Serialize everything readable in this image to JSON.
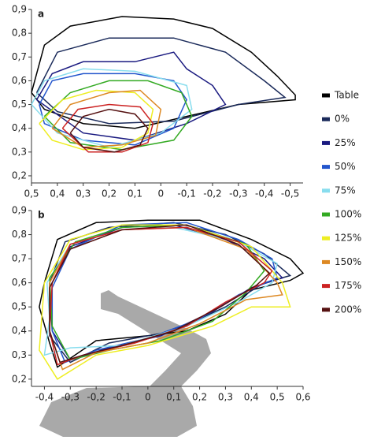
{
  "chart_data": [
    {
      "type": "line",
      "panel_label": "a",
      "xlim": [
        0.5,
        -0.55
      ],
      "ylim": [
        0.17,
        0.9
      ],
      "xticks": [
        {
          "value": 0.5,
          "label": "0,5"
        },
        {
          "value": 0.4,
          "label": "0,4"
        },
        {
          "value": 0.3,
          "label": "0,3"
        },
        {
          "value": 0.2,
          "label": "0,2"
        },
        {
          "value": 0.1,
          "label": "0,1"
        },
        0,
        {
          "value": -0.1,
          "label": "-0,1"
        },
        {
          "value": -0.2,
          "label": "-0,2"
        },
        {
          "value": -0.3,
          "label": "-0,3"
        },
        {
          "value": -0.4,
          "label": "-0,4"
        },
        {
          "value": -0.5,
          "label": "-0,5"
        }
      ],
      "yticks": [
        {
          "value": 0.2,
          "label": "0,2"
        },
        {
          "value": 0.3,
          "label": "0,3"
        },
        {
          "value": 0.4,
          "label": "0,4"
        },
        {
          "value": 0.5,
          "label": "0,5"
        },
        {
          "value": 0.6,
          "label": "0,6"
        },
        {
          "value": 0.7,
          "label": "0,7"
        },
        {
          "value": 0.8,
          "label": "0,8"
        },
        {
          "value": 0.9,
          "label": "0,9"
        }
      ],
      "series": [
        {
          "name": "Table",
          "color": "#000000",
          "x": [
            0.5,
            0.45,
            0.35,
            0.15,
            -0.05,
            -0.2,
            -0.35,
            -0.45,
            -0.52,
            -0.52,
            -0.3,
            -0.1,
            0.1,
            0.3,
            0.45,
            0.5
          ],
          "y": [
            0.55,
            0.75,
            0.83,
            0.87,
            0.86,
            0.82,
            0.72,
            0.62,
            0.54,
            0.52,
            0.5,
            0.45,
            0.4,
            0.42,
            0.48,
            0.55
          ]
        },
        {
          "name": "0%",
          "color": "#1a2a5a",
          "x": [
            0.48,
            0.4,
            0.2,
            -0.05,
            -0.25,
            -0.4,
            -0.48,
            -0.3,
            -0.05,
            0.2,
            0.4,
            0.48
          ],
          "y": [
            0.55,
            0.72,
            0.78,
            0.78,
            0.72,
            0.6,
            0.53,
            0.5,
            0.43,
            0.42,
            0.47,
            0.55
          ]
        },
        {
          "name": "25%",
          "color": "#1a1a80",
          "x": [
            0.48,
            0.42,
            0.3,
            0.1,
            -0.05,
            -0.1,
            -0.2,
            -0.25,
            -0.1,
            0.1,
            0.3,
            0.48
          ],
          "y": [
            0.52,
            0.63,
            0.68,
            0.68,
            0.72,
            0.65,
            0.58,
            0.5,
            0.42,
            0.35,
            0.38,
            0.52
          ]
        },
        {
          "name": "50%",
          "color": "#2255cc",
          "x": [
            0.47,
            0.42,
            0.3,
            0.1,
            -0.05,
            -0.1,
            -0.05,
            0.1,
            0.3,
            0.45,
            0.47
          ],
          "y": [
            0.5,
            0.6,
            0.63,
            0.63,
            0.6,
            0.52,
            0.4,
            0.33,
            0.35,
            0.42,
            0.5
          ]
        },
        {
          "name": "75%",
          "color": "#88ddee",
          "x": [
            0.5,
            0.45,
            0.3,
            0.1,
            -0.1,
            -0.12,
            0,
            0.2,
            0.4,
            0.5
          ],
          "y": [
            0.5,
            0.6,
            0.65,
            0.64,
            0.58,
            0.48,
            0.38,
            0.32,
            0.38,
            0.5
          ]
        },
        {
          "name": "100%",
          "color": "#33aa22",
          "x": [
            0.45,
            0.35,
            0.2,
            0.05,
            -0.08,
            -0.12,
            -0.05,
            0.15,
            0.35,
            0.45
          ],
          "y": [
            0.45,
            0.55,
            0.6,
            0.6,
            0.55,
            0.45,
            0.35,
            0.31,
            0.34,
            0.45
          ]
        },
        {
          "name": "125%",
          "color": "#eeee22",
          "x": [
            0.47,
            0.38,
            0.25,
            0.1,
            0.03,
            0.05,
            0.15,
            0.3,
            0.42,
            0.47
          ],
          "y": [
            0.42,
            0.52,
            0.56,
            0.55,
            0.48,
            0.38,
            0.32,
            0.31,
            0.35,
            0.42
          ]
        },
        {
          "name": "150%",
          "color": "#dd8822",
          "x": [
            0.42,
            0.35,
            0.2,
            0.08,
            0,
            0.02,
            0.15,
            0.3,
            0.42
          ],
          "y": [
            0.4,
            0.5,
            0.55,
            0.56,
            0.48,
            0.37,
            0.33,
            0.32,
            0.4
          ]
        },
        {
          "name": "175%",
          "color": "#cc2222",
          "x": [
            0.38,
            0.32,
            0.2,
            0.08,
            0.03,
            0.05,
            0.15,
            0.28,
            0.38
          ],
          "y": [
            0.4,
            0.48,
            0.5,
            0.49,
            0.42,
            0.34,
            0.3,
            0.3,
            0.4
          ]
        },
        {
          "name": "200%",
          "color": "#551111",
          "x": [
            0.35,
            0.3,
            0.2,
            0.1,
            0.05,
            0.08,
            0.18,
            0.3,
            0.35
          ],
          "y": [
            0.38,
            0.45,
            0.48,
            0.46,
            0.4,
            0.33,
            0.3,
            0.32,
            0.38
          ]
        }
      ]
    },
    {
      "type": "line",
      "panel_label": "b",
      "xlim": [
        -0.45,
        0.6
      ],
      "ylim": [
        0.17,
        0.9
      ],
      "xticks": [
        {
          "value": -0.4,
          "label": "-0,4"
        },
        {
          "value": -0.3,
          "label": "-0,3"
        },
        {
          "value": -0.2,
          "label": "-0,2"
        },
        {
          "value": -0.1,
          "label": "-0,1"
        },
        0,
        {
          "value": 0.1,
          "label": "0,1"
        },
        {
          "value": 0.2,
          "label": "0,2"
        },
        {
          "value": 0.3,
          "label": "0,3"
        },
        {
          "value": 0.4,
          "label": "0,4"
        },
        {
          "value": 0.5,
          "label": "0,5"
        },
        {
          "value": 0.6,
          "label": "0,6"
        }
      ],
      "yticks": [
        {
          "value": 0.2,
          "label": "0,2"
        },
        {
          "value": 0.3,
          "label": "0,3"
        },
        {
          "value": 0.4,
          "label": "0,4"
        },
        {
          "value": 0.5,
          "label": "0,5"
        },
        {
          "value": 0.6,
          "label": "0,6"
        },
        {
          "value": 0.7,
          "label": "0,7"
        },
        {
          "value": 0.8,
          "label": "0,8"
        },
        {
          "value": 0.9,
          "label": "0,9"
        }
      ],
      "series": [
        {
          "color": "#000000",
          "x": [
            -0.4,
            -0.35,
            -0.2,
            0,
            0.2,
            0.4,
            0.55,
            0.6,
            0.55,
            0.4,
            0.3,
            0.15,
            0,
            -0.2,
            -0.35,
            -0.38,
            -0.42,
            -0.4
          ],
          "y": [
            0.6,
            0.78,
            0.85,
            0.86,
            0.86,
            0.78,
            0.7,
            0.64,
            0.61,
            0.57,
            0.47,
            0.4,
            0.38,
            0.36,
            0.25,
            0.35,
            0.5,
            0.6
          ]
        },
        {
          "color": "#1a2a5a",
          "x": [
            -0.38,
            -0.32,
            -0.15,
            0.1,
            0.3,
            0.45,
            0.55,
            0.45,
            0.3,
            0.1,
            -0.15,
            -0.3,
            -0.38,
            -0.38
          ],
          "y": [
            0.6,
            0.77,
            0.83,
            0.85,
            0.8,
            0.72,
            0.63,
            0.6,
            0.5,
            0.4,
            0.35,
            0.27,
            0.38,
            0.6
          ]
        },
        {
          "color": "#1a1a80",
          "x": [
            -0.38,
            -0.3,
            -0.1,
            0.1,
            0.3,
            0.45,
            0.52,
            0.4,
            0.25,
            0.05,
            -0.15,
            -0.3,
            -0.37,
            -0.38
          ],
          "y": [
            0.58,
            0.75,
            0.83,
            0.84,
            0.78,
            0.7,
            0.62,
            0.58,
            0.48,
            0.38,
            0.33,
            0.28,
            0.4,
            0.58
          ]
        },
        {
          "color": "#2255cc",
          "x": [
            -0.37,
            -0.3,
            -0.1,
            0.15,
            0.35,
            0.48,
            0.5,
            0.35,
            0.2,
            0,
            -0.2,
            -0.32,
            -0.37,
            -0.37
          ],
          "y": [
            0.58,
            0.74,
            0.84,
            0.85,
            0.78,
            0.7,
            0.62,
            0.55,
            0.45,
            0.37,
            0.32,
            0.27,
            0.4,
            0.58
          ]
        },
        {
          "color": "#88ddee",
          "x": [
            -0.39,
            -0.3,
            -0.1,
            0.1,
            0.35,
            0.5,
            0.48,
            0.35,
            0.15,
            -0.1,
            -0.3,
            -0.4,
            -0.38,
            -0.39
          ],
          "y": [
            0.6,
            0.76,
            0.82,
            0.83,
            0.77,
            0.68,
            0.6,
            0.52,
            0.42,
            0.34,
            0.33,
            0.3,
            0.45,
            0.6
          ]
        },
        {
          "color": "#33aa22",
          "x": [
            -0.38,
            -0.28,
            -0.1,
            0.15,
            0.38,
            0.45,
            0.38,
            0.25,
            0.05,
            -0.15,
            -0.3,
            -0.37,
            -0.38
          ],
          "y": [
            0.62,
            0.77,
            0.83,
            0.84,
            0.76,
            0.65,
            0.56,
            0.44,
            0.36,
            0.32,
            0.28,
            0.42,
            0.62
          ]
        },
        {
          "color": "#eeee22",
          "x": [
            -0.4,
            -0.3,
            -0.1,
            0.15,
            0.4,
            0.52,
            0.55,
            0.4,
            0.25,
            0,
            -0.2,
            -0.35,
            -0.42,
            -0.4
          ],
          "y": [
            0.6,
            0.78,
            0.84,
            0.84,
            0.75,
            0.6,
            0.5,
            0.5,
            0.42,
            0.34,
            0.3,
            0.2,
            0.32,
            0.6
          ]
        },
        {
          "color": "#dd8822",
          "x": [
            -0.38,
            -0.3,
            -0.1,
            0.15,
            0.38,
            0.5,
            0.52,
            0.38,
            0.2,
            0,
            -0.2,
            -0.33,
            -0.38,
            -0.38
          ],
          "y": [
            0.6,
            0.76,
            0.82,
            0.83,
            0.74,
            0.6,
            0.55,
            0.53,
            0.43,
            0.35,
            0.31,
            0.24,
            0.4,
            0.6
          ]
        },
        {
          "color": "#cc2222",
          "x": [
            -0.37,
            -0.3,
            -0.1,
            0.15,
            0.35,
            0.48,
            0.45,
            0.3,
            0.15,
            -0.05,
            -0.25,
            -0.35,
            -0.38,
            -0.37
          ],
          "y": [
            0.6,
            0.76,
            0.82,
            0.83,
            0.77,
            0.65,
            0.6,
            0.52,
            0.42,
            0.35,
            0.3,
            0.26,
            0.4,
            0.6
          ]
        },
        {
          "color": "#551111",
          "x": [
            -0.38,
            -0.3,
            -0.1,
            0.15,
            0.35,
            0.47,
            0.42,
            0.28,
            0.1,
            -0.1,
            -0.25,
            -0.34,
            -0.38,
            -0.38
          ],
          "y": [
            0.58,
            0.74,
            0.82,
            0.84,
            0.76,
            0.64,
            0.59,
            0.5,
            0.4,
            0.34,
            0.3,
            0.27,
            0.4,
            0.58
          ]
        }
      ]
    }
  ]
}
